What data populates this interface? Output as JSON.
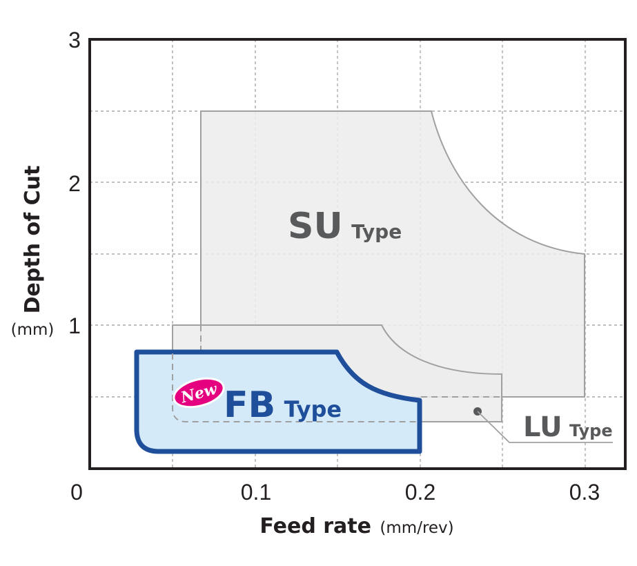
{
  "chart_data": {
    "type": "area",
    "title": "",
    "xlabel": "Feed rate",
    "xlabel_unit": "(mm/rev)",
    "ylabel": "Depth of Cut",
    "ylabel_unit": "(mm)",
    "xlim": [
      0,
      0.325
    ],
    "ylim": [
      0,
      3
    ],
    "xticks": [
      0,
      0.1,
      0.2,
      0.3
    ],
    "xtick_labels": [
      "0",
      "0.1",
      "0.2",
      "0.3"
    ],
    "yticks": [
      1,
      2,
      3
    ],
    "ytick_labels": [
      "1",
      "2",
      "3"
    ],
    "grid": true,
    "series": [
      {
        "name": "SU",
        "suffix": "Type",
        "fill": "#ececec",
        "stroke": "#a0a0a0",
        "text_color": "#58595b",
        "outline": [
          [
            0.07,
            2.5
          ],
          [
            0.21,
            2.5
          ],
          [
            0.3,
            1.5
          ],
          [
            0.3,
            0.5
          ],
          [
            0.07,
            0.5
          ]
        ]
      },
      {
        "name": "LU",
        "suffix": "Type",
        "fill": "#ececec",
        "stroke": "#a0a0a0",
        "text_color": "#58595b",
        "outline": [
          [
            0.05,
            1.0
          ],
          [
            0.18,
            1.0
          ],
          [
            0.25,
            0.66
          ],
          [
            0.25,
            0.33
          ],
          [
            0.05,
            0.33
          ]
        ]
      },
      {
        "name": "FB",
        "suffix": "Type",
        "badge": "New",
        "fill": "#d5eaf8",
        "stroke": "#1f4e9b",
        "text_color": "#1f4e9b",
        "badge_color": "#e4007f",
        "outline": [
          [
            0.03,
            0.82
          ],
          [
            0.15,
            0.82
          ],
          [
            0.2,
            0.47
          ],
          [
            0.2,
            0.12
          ],
          [
            0.03,
            0.12
          ]
        ]
      }
    ]
  }
}
